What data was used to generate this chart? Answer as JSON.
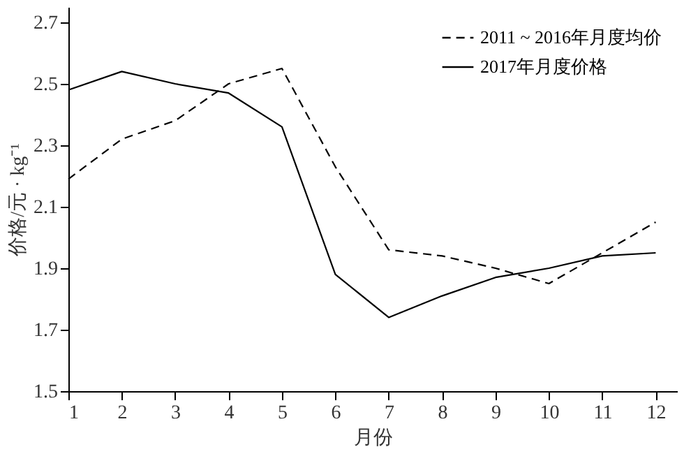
{
  "chart_data": {
    "type": "line",
    "xlabel": "月份",
    "ylabel": "价格/元 · kg⁻¹",
    "x": [
      1,
      2,
      3,
      4,
      5,
      6,
      7,
      8,
      9,
      10,
      11,
      12
    ],
    "series": [
      {
        "name": "2011 ~ 2016年月度均价",
        "color": "#000000",
        "line_style": "dashed",
        "values": [
          2.19,
          2.32,
          2.38,
          2.5,
          2.55,
          2.23,
          1.96,
          1.94,
          1.9,
          1.85,
          1.95,
          2.05
        ]
      },
      {
        "name": "2017年月度价格",
        "color": "#000000",
        "line_style": "solid",
        "values": [
          2.48,
          2.54,
          2.5,
          2.47,
          2.36,
          1.88,
          1.74,
          1.81,
          1.87,
          1.9,
          1.94,
          1.95
        ]
      }
    ],
    "xlim": [
      1,
      12.4
    ],
    "xticks": [
      1,
      2,
      3,
      4,
      5,
      6,
      7,
      8,
      9,
      10,
      11,
      12
    ],
    "ylim": [
      1.5,
      2.75
    ],
    "yticks": [
      1.5,
      1.7,
      1.9,
      2.1,
      2.3,
      2.5,
      2.7
    ],
    "grid": false,
    "legend": "top right",
    "marker": "none"
  }
}
